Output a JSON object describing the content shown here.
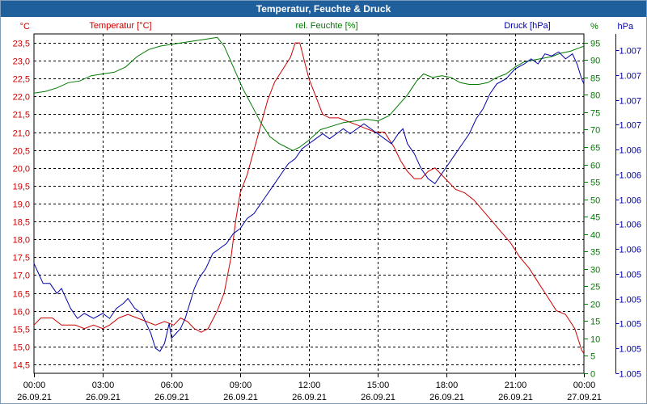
{
  "window": {
    "title": "Temperatur, Feuchte & Druck"
  },
  "colors": {
    "temperature": "#cc0000",
    "humidity": "#007a00",
    "pressure": "#0000aa",
    "grid": "#000000",
    "frame": "#1f5f9c"
  },
  "chart_data": {
    "type": "line",
    "title": "Temperatur, Feuchte & Druck",
    "grid": true,
    "x_ticks": [
      {
        "time": "00:00",
        "date": "26.09.21"
      },
      {
        "time": "03:00",
        "date": "26.09.21"
      },
      {
        "time": "06:00",
        "date": "26.09.21"
      },
      {
        "time": "09:00",
        "date": "26.09.21"
      },
      {
        "time": "12:00",
        "date": "26.09.21"
      },
      {
        "time": "15:00",
        "date": "26.09.21"
      },
      {
        "time": "18:00",
        "date": "26.09.21"
      },
      {
        "time": "21:00",
        "date": "26.09.21"
      },
      {
        "time": "00:00",
        "date": "27.09.21"
      }
    ],
    "xlim": [
      0,
      24
    ],
    "axes": {
      "temperature": {
        "label": "Temperatur [°C]",
        "unit": "°C",
        "ylim": [
          14.25,
          23.75
        ],
        "ticks": [
          "14,5",
          "15,0",
          "15,5",
          "16,0",
          "16,5",
          "17,0",
          "17,5",
          "18,0",
          "18,5",
          "19,0",
          "19,5",
          "20,0",
          "20,5",
          "21,0",
          "21,5",
          "22,0",
          "22,5",
          "23,0",
          "23,5"
        ]
      },
      "humidity": {
        "label": "rel. Feuchte [%]",
        "unit": "%",
        "ylim": [
          0,
          97.5
        ],
        "ticks": [
          "0",
          "5",
          "10",
          "15",
          "20",
          "25",
          "30",
          "35",
          "40",
          "45",
          "50",
          "55",
          "60",
          "65",
          "70",
          "75",
          "80",
          "85",
          "90",
          "95"
        ]
      },
      "pressure": {
        "label": "Druck [hPa]",
        "unit": "hPa",
        "ylim": [
          1004.5,
          1007.9
        ],
        "ticks": [
          "1.005",
          "1.005",
          "1.005",
          "1.005",
          "1.005",
          "1.006",
          "1.006",
          "1.006",
          "1.006",
          "1.006",
          "1.007",
          "1.007",
          "1.007",
          "1.007"
        ]
      }
    },
    "series": [
      {
        "name": "Temperatur",
        "axis": "temperature",
        "color": "#cc0000",
        "points": [
          [
            0,
            15.6
          ],
          [
            0.3,
            15.8
          ],
          [
            0.8,
            15.8
          ],
          [
            1.2,
            15.6
          ],
          [
            1.8,
            15.6
          ],
          [
            2.2,
            15.5
          ],
          [
            2.6,
            15.6
          ],
          [
            3,
            15.5
          ],
          [
            3.3,
            15.6
          ],
          [
            3.7,
            15.8
          ],
          [
            4.1,
            15.9
          ],
          [
            4.5,
            15.8
          ],
          [
            4.9,
            15.7
          ],
          [
            5.3,
            15.6
          ],
          [
            5.7,
            15.7
          ],
          [
            6.1,
            15.6
          ],
          [
            6.4,
            15.8
          ],
          [
            6.7,
            15.7
          ],
          [
            7.0,
            15.5
          ],
          [
            7.3,
            15.4
          ],
          [
            7.6,
            15.5
          ],
          [
            8.0,
            16.0
          ],
          [
            8.3,
            16.5
          ],
          [
            8.6,
            17.5
          ],
          [
            8.8,
            18.5
          ],
          [
            9.0,
            19.3
          ],
          [
            9.3,
            19.8
          ],
          [
            9.6,
            20.5
          ],
          [
            9.9,
            21.2
          ],
          [
            10.2,
            21.9
          ],
          [
            10.5,
            22.4
          ],
          [
            10.9,
            22.8
          ],
          [
            11.2,
            23.1
          ],
          [
            11.4,
            23.5
          ],
          [
            11.6,
            23.5
          ],
          [
            11.8,
            23.0
          ],
          [
            12.0,
            22.5
          ],
          [
            12.3,
            22.0
          ],
          [
            12.6,
            21.5
          ],
          [
            12.9,
            21.4
          ],
          [
            13.3,
            21.4
          ],
          [
            13.7,
            21.3
          ],
          [
            14.1,
            21.2
          ],
          [
            14.5,
            21.1
          ],
          [
            14.9,
            21.0
          ],
          [
            15.3,
            21.0
          ],
          [
            15.7,
            20.6
          ],
          [
            16.0,
            20.2
          ],
          [
            16.3,
            19.9
          ],
          [
            16.6,
            19.7
          ],
          [
            16.9,
            19.7
          ],
          [
            17.2,
            19.9
          ],
          [
            17.5,
            20.0
          ],
          [
            17.8,
            19.8
          ],
          [
            18.1,
            19.6
          ],
          [
            18.4,
            19.4
          ],
          [
            18.8,
            19.3
          ],
          [
            19.2,
            19.1
          ],
          [
            19.6,
            18.8
          ],
          [
            20.0,
            18.5
          ],
          [
            20.4,
            18.2
          ],
          [
            20.8,
            17.9
          ],
          [
            21.2,
            17.5
          ],
          [
            21.6,
            17.2
          ],
          [
            22.0,
            16.8
          ],
          [
            22.4,
            16.4
          ],
          [
            22.8,
            16.0
          ],
          [
            23.2,
            15.9
          ],
          [
            23.6,
            15.5
          ],
          [
            23.9,
            14.9
          ],
          [
            24.0,
            14.8
          ]
        ]
      },
      {
        "name": "rel. Feuchte",
        "axis": "humidity",
        "color": "#007a00",
        "points": [
          [
            0,
            80.5
          ],
          [
            0.5,
            81
          ],
          [
            1.0,
            82
          ],
          [
            1.5,
            83.5
          ],
          [
            2.0,
            84
          ],
          [
            2.5,
            85.5
          ],
          [
            3.0,
            86
          ],
          [
            3.5,
            86.5
          ],
          [
            4.0,
            88
          ],
          [
            4.5,
            91
          ],
          [
            5.0,
            93
          ],
          [
            5.5,
            94
          ],
          [
            6.0,
            94.5
          ],
          [
            6.5,
            95
          ],
          [
            7.0,
            95.5
          ],
          [
            7.5,
            96
          ],
          [
            8.0,
            96.5
          ],
          [
            8.3,
            94
          ],
          [
            8.7,
            88
          ],
          [
            9.1,
            82
          ],
          [
            9.5,
            77
          ],
          [
            9.9,
            72
          ],
          [
            10.3,
            68
          ],
          [
            10.7,
            66
          ],
          [
            11.0,
            65
          ],
          [
            11.3,
            64
          ],
          [
            11.6,
            65
          ],
          [
            12.0,
            67
          ],
          [
            12.5,
            70
          ],
          [
            13.0,
            71
          ],
          [
            13.5,
            72
          ],
          [
            14.0,
            72.5
          ],
          [
            14.5,
            73
          ],
          [
            15.0,
            72.5
          ],
          [
            15.5,
            74
          ],
          [
            15.9,
            77
          ],
          [
            16.3,
            80
          ],
          [
            16.7,
            84
          ],
          [
            17.0,
            86
          ],
          [
            17.4,
            85
          ],
          [
            17.8,
            85.5
          ],
          [
            18.2,
            85
          ],
          [
            18.6,
            83.5
          ],
          [
            19.0,
            83
          ],
          [
            19.4,
            83
          ],
          [
            19.8,
            83.5
          ],
          [
            20.2,
            85
          ],
          [
            20.6,
            86
          ],
          [
            21.0,
            88
          ],
          [
            21.4,
            89.5
          ],
          [
            21.8,
            90
          ],
          [
            22.2,
            90.5
          ],
          [
            22.6,
            91
          ],
          [
            23.0,
            92
          ],
          [
            23.4,
            92.5
          ],
          [
            23.8,
            93.5
          ],
          [
            24.0,
            94
          ]
        ]
      },
      {
        "name": "Druck",
        "axis": "pressure",
        "color": "#0000aa",
        "points": [
          [
            0,
            1005.6
          ],
          [
            0.2,
            1005.5
          ],
          [
            0.4,
            1005.4
          ],
          [
            0.7,
            1005.4
          ],
          [
            1.0,
            1005.3
          ],
          [
            1.2,
            1005.35
          ],
          [
            1.4,
            1005.25
          ],
          [
            1.6,
            1005.15
          ],
          [
            1.9,
            1005.05
          ],
          [
            2.2,
            1005.1
          ],
          [
            2.6,
            1005.05
          ],
          [
            3.0,
            1005.1
          ],
          [
            3.3,
            1005.05
          ],
          [
            3.6,
            1005.15
          ],
          [
            3.9,
            1005.2
          ],
          [
            4.1,
            1005.25
          ],
          [
            4.4,
            1005.15
          ],
          [
            4.7,
            1005.1
          ],
          [
            4.9,
            1005.0
          ],
          [
            5.1,
            1004.9
          ],
          [
            5.3,
            1004.75
          ],
          [
            5.5,
            1004.72
          ],
          [
            5.7,
            1004.8
          ],
          [
            5.9,
            1005.0
          ],
          [
            6.0,
            1004.85
          ],
          [
            6.2,
            1004.9
          ],
          [
            6.4,
            1004.95
          ],
          [
            6.6,
            1005.05
          ],
          [
            6.8,
            1005.2
          ],
          [
            7.0,
            1005.35
          ],
          [
            7.2,
            1005.45
          ],
          [
            7.5,
            1005.55
          ],
          [
            7.8,
            1005.7
          ],
          [
            8.1,
            1005.75
          ],
          [
            8.4,
            1005.8
          ],
          [
            8.7,
            1005.9
          ],
          [
            9.0,
            1005.95
          ],
          [
            9.3,
            1006.05
          ],
          [
            9.6,
            1006.1
          ],
          [
            9.9,
            1006.2
          ],
          [
            10.2,
            1006.3
          ],
          [
            10.5,
            1006.4
          ],
          [
            10.8,
            1006.5
          ],
          [
            11.1,
            1006.6
          ],
          [
            11.4,
            1006.65
          ],
          [
            11.7,
            1006.75
          ],
          [
            12.0,
            1006.8
          ],
          [
            12.3,
            1006.85
          ],
          [
            12.6,
            1006.9
          ],
          [
            12.9,
            1006.85
          ],
          [
            13.2,
            1006.9
          ],
          [
            13.5,
            1006.95
          ],
          [
            13.8,
            1006.9
          ],
          [
            14.1,
            1006.95
          ],
          [
            14.4,
            1007.0
          ],
          [
            14.7,
            1006.95
          ],
          [
            15.0,
            1006.9
          ],
          [
            15.3,
            1006.85
          ],
          [
            15.6,
            1006.8
          ],
          [
            15.9,
            1006.9
          ],
          [
            16.1,
            1006.95
          ],
          [
            16.3,
            1006.8
          ],
          [
            16.6,
            1006.7
          ],
          [
            16.9,
            1006.55
          ],
          [
            17.2,
            1006.45
          ],
          [
            17.5,
            1006.4
          ],
          [
            17.8,
            1006.5
          ],
          [
            18.1,
            1006.6
          ],
          [
            18.4,
            1006.7
          ],
          [
            18.7,
            1006.8
          ],
          [
            19.0,
            1006.9
          ],
          [
            19.3,
            1007.05
          ],
          [
            19.6,
            1007.15
          ],
          [
            19.9,
            1007.3
          ],
          [
            20.2,
            1007.4
          ],
          [
            20.6,
            1007.45
          ],
          [
            21.0,
            1007.55
          ],
          [
            21.4,
            1007.6
          ],
          [
            21.7,
            1007.65
          ],
          [
            22.0,
            1007.6
          ],
          [
            22.3,
            1007.7
          ],
          [
            22.6,
            1007.68
          ],
          [
            22.9,
            1007.72
          ],
          [
            23.2,
            1007.65
          ],
          [
            23.5,
            1007.7
          ],
          [
            23.7,
            1007.6
          ],
          [
            23.9,
            1007.45
          ],
          [
            24.0,
            1007.4
          ]
        ]
      }
    ]
  }
}
